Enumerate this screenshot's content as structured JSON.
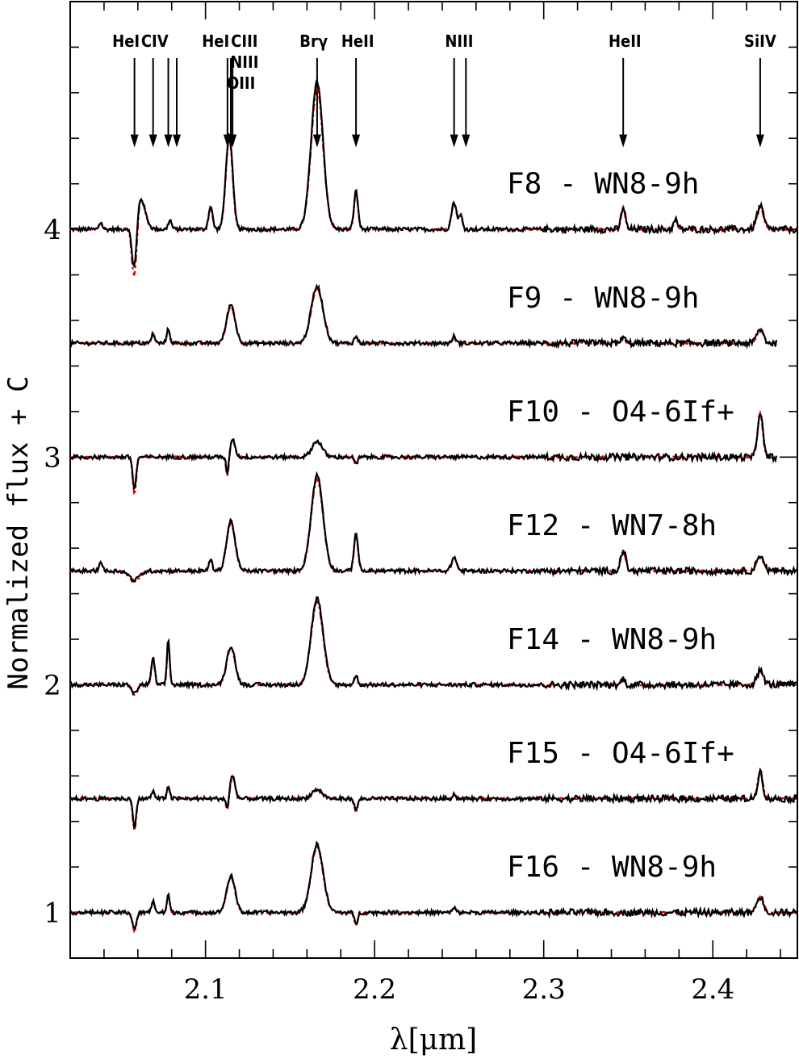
{
  "chart_data": {
    "type": "line",
    "title": "",
    "xlabel": "λ[μm]",
    "ylabel": "Normalized flux + C",
    "xlim": [
      2.02,
      2.45
    ],
    "ylim": [
      0.8,
      5.0
    ],
    "xticks": [
      2.1,
      2.2,
      2.3,
      2.4
    ],
    "xtick_labels": [
      "2.1",
      "2.2",
      "2.3",
      "2.4"
    ],
    "yticks": [
      1,
      2,
      3,
      4
    ],
    "ytick_labels": [
      "1",
      "2",
      "3",
      "4"
    ],
    "grid": false,
    "line_ids": [
      {
        "label": "HeI",
        "wavelength": 2.058
      },
      {
        "label": "CIV",
        "wavelength": 2.069
      },
      {
        "label": "",
        "wavelength": 2.078
      },
      {
        "label": "",
        "wavelength": 2.083
      },
      {
        "label": "HeI",
        "wavelength": 2.113
      },
      {
        "label": "CIII",
        "wavelength": 2.115
      },
      {
        "label": "NIII",
        "wavelength": 2.116
      },
      {
        "label": "OIII",
        "wavelength": 2.115
      },
      {
        "label": "Brγ",
        "wavelength": 2.166
      },
      {
        "label": "HeII",
        "wavelength": 2.189
      },
      {
        "label": "NIII",
        "wavelength": 2.247
      },
      {
        "label": "",
        "wavelength": 2.254
      },
      {
        "label": "HeII",
        "wavelength": 2.347
      },
      {
        "label": "SiIV",
        "wavelength": 2.428
      }
    ],
    "series": [
      {
        "name": "F8 - WN8-9h",
        "offset": 4.0,
        "label_y": 4.2,
        "lines": [
          {
            "w": 2.038,
            "a": 0.03,
            "s": 0.001
          },
          {
            "w": 2.058,
            "a": -0.25,
            "s": 0.0015
          },
          {
            "w": 2.061,
            "a": 0.15,
            "s": 0.003
          },
          {
            "w": 2.079,
            "a": 0.04,
            "s": 0.001
          },
          {
            "w": 2.103,
            "a": 0.1,
            "s": 0.0012
          },
          {
            "w": 2.114,
            "a": 0.42,
            "s": 0.002
          },
          {
            "w": 2.166,
            "a": 0.65,
            "s": 0.0035
          },
          {
            "w": 2.189,
            "a": 0.17,
            "s": 0.0012
          },
          {
            "w": 2.247,
            "a": 0.12,
            "s": 0.0015
          },
          {
            "w": 2.251,
            "a": 0.06,
            "s": 0.001
          },
          {
            "w": 2.347,
            "a": 0.1,
            "s": 0.0012
          },
          {
            "w": 2.378,
            "a": 0.04,
            "s": 0.0012
          },
          {
            "w": 2.428,
            "a": 0.1,
            "s": 0.002
          }
        ]
      },
      {
        "name": "F9 - WN8-9h",
        "offset": 3.5,
        "label_y": 3.7,
        "lines": [
          {
            "w": 2.069,
            "a": 0.04,
            "s": 0.001
          },
          {
            "w": 2.078,
            "a": 0.06,
            "s": 0.001
          },
          {
            "w": 2.115,
            "a": 0.17,
            "s": 0.0025
          },
          {
            "w": 2.166,
            "a": 0.25,
            "s": 0.0035
          },
          {
            "w": 2.189,
            "a": 0.03,
            "s": 0.001
          },
          {
            "w": 2.247,
            "a": 0.03,
            "s": 0.001
          },
          {
            "w": 2.347,
            "a": 0.03,
            "s": 0.001
          },
          {
            "w": 2.428,
            "a": 0.06,
            "s": 0.002
          }
        ]
      },
      {
        "name": "F10 - O4-6If+",
        "offset": 3.0,
        "label_y": 3.2,
        "lines": [
          {
            "w": 2.058,
            "a": -0.14,
            "s": 0.001
          },
          {
            "w": 2.113,
            "a": -0.08,
            "s": 0.0008
          },
          {
            "w": 2.116,
            "a": 0.08,
            "s": 0.0015
          },
          {
            "w": 2.166,
            "a": 0.07,
            "s": 0.003
          },
          {
            "w": 2.189,
            "a": -0.03,
            "s": 0.001
          },
          {
            "w": 2.428,
            "a": 0.2,
            "s": 0.0015
          }
        ]
      },
      {
        "name": "F12 - WN7-8h",
        "offset": 2.5,
        "label_y": 2.7,
        "lines": [
          {
            "w": 2.038,
            "a": 0.04,
            "s": 0.001
          },
          {
            "w": 2.058,
            "a": -0.04,
            "s": 0.003
          },
          {
            "w": 2.103,
            "a": 0.05,
            "s": 0.001
          },
          {
            "w": 2.115,
            "a": 0.22,
            "s": 0.0025
          },
          {
            "w": 2.166,
            "a": 0.42,
            "s": 0.0035
          },
          {
            "w": 2.189,
            "a": 0.17,
            "s": 0.0012
          },
          {
            "w": 2.247,
            "a": 0.06,
            "s": 0.0015
          },
          {
            "w": 2.347,
            "a": 0.09,
            "s": 0.0015
          },
          {
            "w": 2.428,
            "a": 0.07,
            "s": 0.002
          }
        ]
      },
      {
        "name": "F14 - WN8-9h",
        "offset": 2.0,
        "label_y": 2.2,
        "lines": [
          {
            "w": 2.058,
            "a": -0.04,
            "s": 0.0015
          },
          {
            "w": 2.069,
            "a": 0.12,
            "s": 0.001
          },
          {
            "w": 2.078,
            "a": 0.2,
            "s": 0.0008
          },
          {
            "w": 2.115,
            "a": 0.17,
            "s": 0.0025
          },
          {
            "w": 2.166,
            "a": 0.38,
            "s": 0.0035
          },
          {
            "w": 2.189,
            "a": 0.04,
            "s": 0.001
          },
          {
            "w": 2.347,
            "a": 0.03,
            "s": 0.001
          },
          {
            "w": 2.428,
            "a": 0.06,
            "s": 0.002
          }
        ]
      },
      {
        "name": "F15 - O4-6If+",
        "offset": 1.5,
        "label_y": 1.7,
        "lines": [
          {
            "w": 2.058,
            "a": -0.12,
            "s": 0.001
          },
          {
            "w": 2.069,
            "a": 0.03,
            "s": 0.001
          },
          {
            "w": 2.078,
            "a": 0.06,
            "s": 0.0008
          },
          {
            "w": 2.113,
            "a": -0.05,
            "s": 0.0008
          },
          {
            "w": 2.116,
            "a": 0.1,
            "s": 0.0015
          },
          {
            "w": 2.166,
            "a": 0.04,
            "s": 0.003
          },
          {
            "w": 2.189,
            "a": -0.05,
            "s": 0.001
          },
          {
            "w": 2.247,
            "a": 0.02,
            "s": 0.001
          },
          {
            "w": 2.428,
            "a": 0.12,
            "s": 0.0015
          }
        ]
      },
      {
        "name": "F16 - WN8-9h",
        "offset": 1.0,
        "label_y": 1.2,
        "lines": [
          {
            "w": 2.058,
            "a": -0.07,
            "s": 0.0012
          },
          {
            "w": 2.069,
            "a": 0.05,
            "s": 0.001
          },
          {
            "w": 2.078,
            "a": 0.08,
            "s": 0.0008
          },
          {
            "w": 2.115,
            "a": 0.16,
            "s": 0.0025
          },
          {
            "w": 2.166,
            "a": 0.3,
            "s": 0.0035
          },
          {
            "w": 2.189,
            "a": -0.05,
            "s": 0.001
          },
          {
            "w": 2.247,
            "a": 0.02,
            "s": 0.001
          },
          {
            "w": 2.428,
            "a": 0.07,
            "s": 0.002
          }
        ]
      }
    ],
    "series_colors": {
      "observed": "#000000",
      "model": "#e00000"
    }
  }
}
